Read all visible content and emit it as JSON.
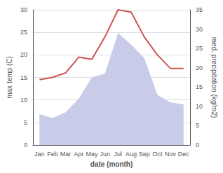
{
  "chart_data": {
    "type": "line",
    "categories": [
      "Jan",
      "Feb",
      "Mar",
      "Apr",
      "May",
      "Jun",
      "Jul",
      "Aug",
      "Sep",
      "Oct",
      "Nov",
      "Dec"
    ],
    "series": [
      {
        "type": "area",
        "color": "#c8cce8",
        "axis": "y2",
        "values": [
          8.0,
          7.0,
          8.5,
          12.0,
          17.5,
          18.5,
          29.0,
          26.0,
          22.5,
          13.0,
          11.0,
          10.5
        ]
      },
      {
        "type": "line",
        "color": "#cc5555",
        "values": [
          14.5,
          15.0,
          16.0,
          19.5,
          19.0,
          24.0,
          30.0,
          29.5,
          24.0,
          20.0,
          17.0,
          17.0
        ]
      }
    ],
    "xlabel": "date (month)",
    "ylabel": "max temp (C)",
    "y2label": "med. precipitation (kg/m2)",
    "ylim": [
      0,
      30
    ],
    "yticks": [
      0,
      5,
      10,
      15,
      20,
      25,
      30
    ],
    "y2lim": [
      0,
      35
    ],
    "y2ticks": [
      0,
      5,
      10,
      15,
      20,
      25,
      30,
      35
    ],
    "grid": true
  }
}
